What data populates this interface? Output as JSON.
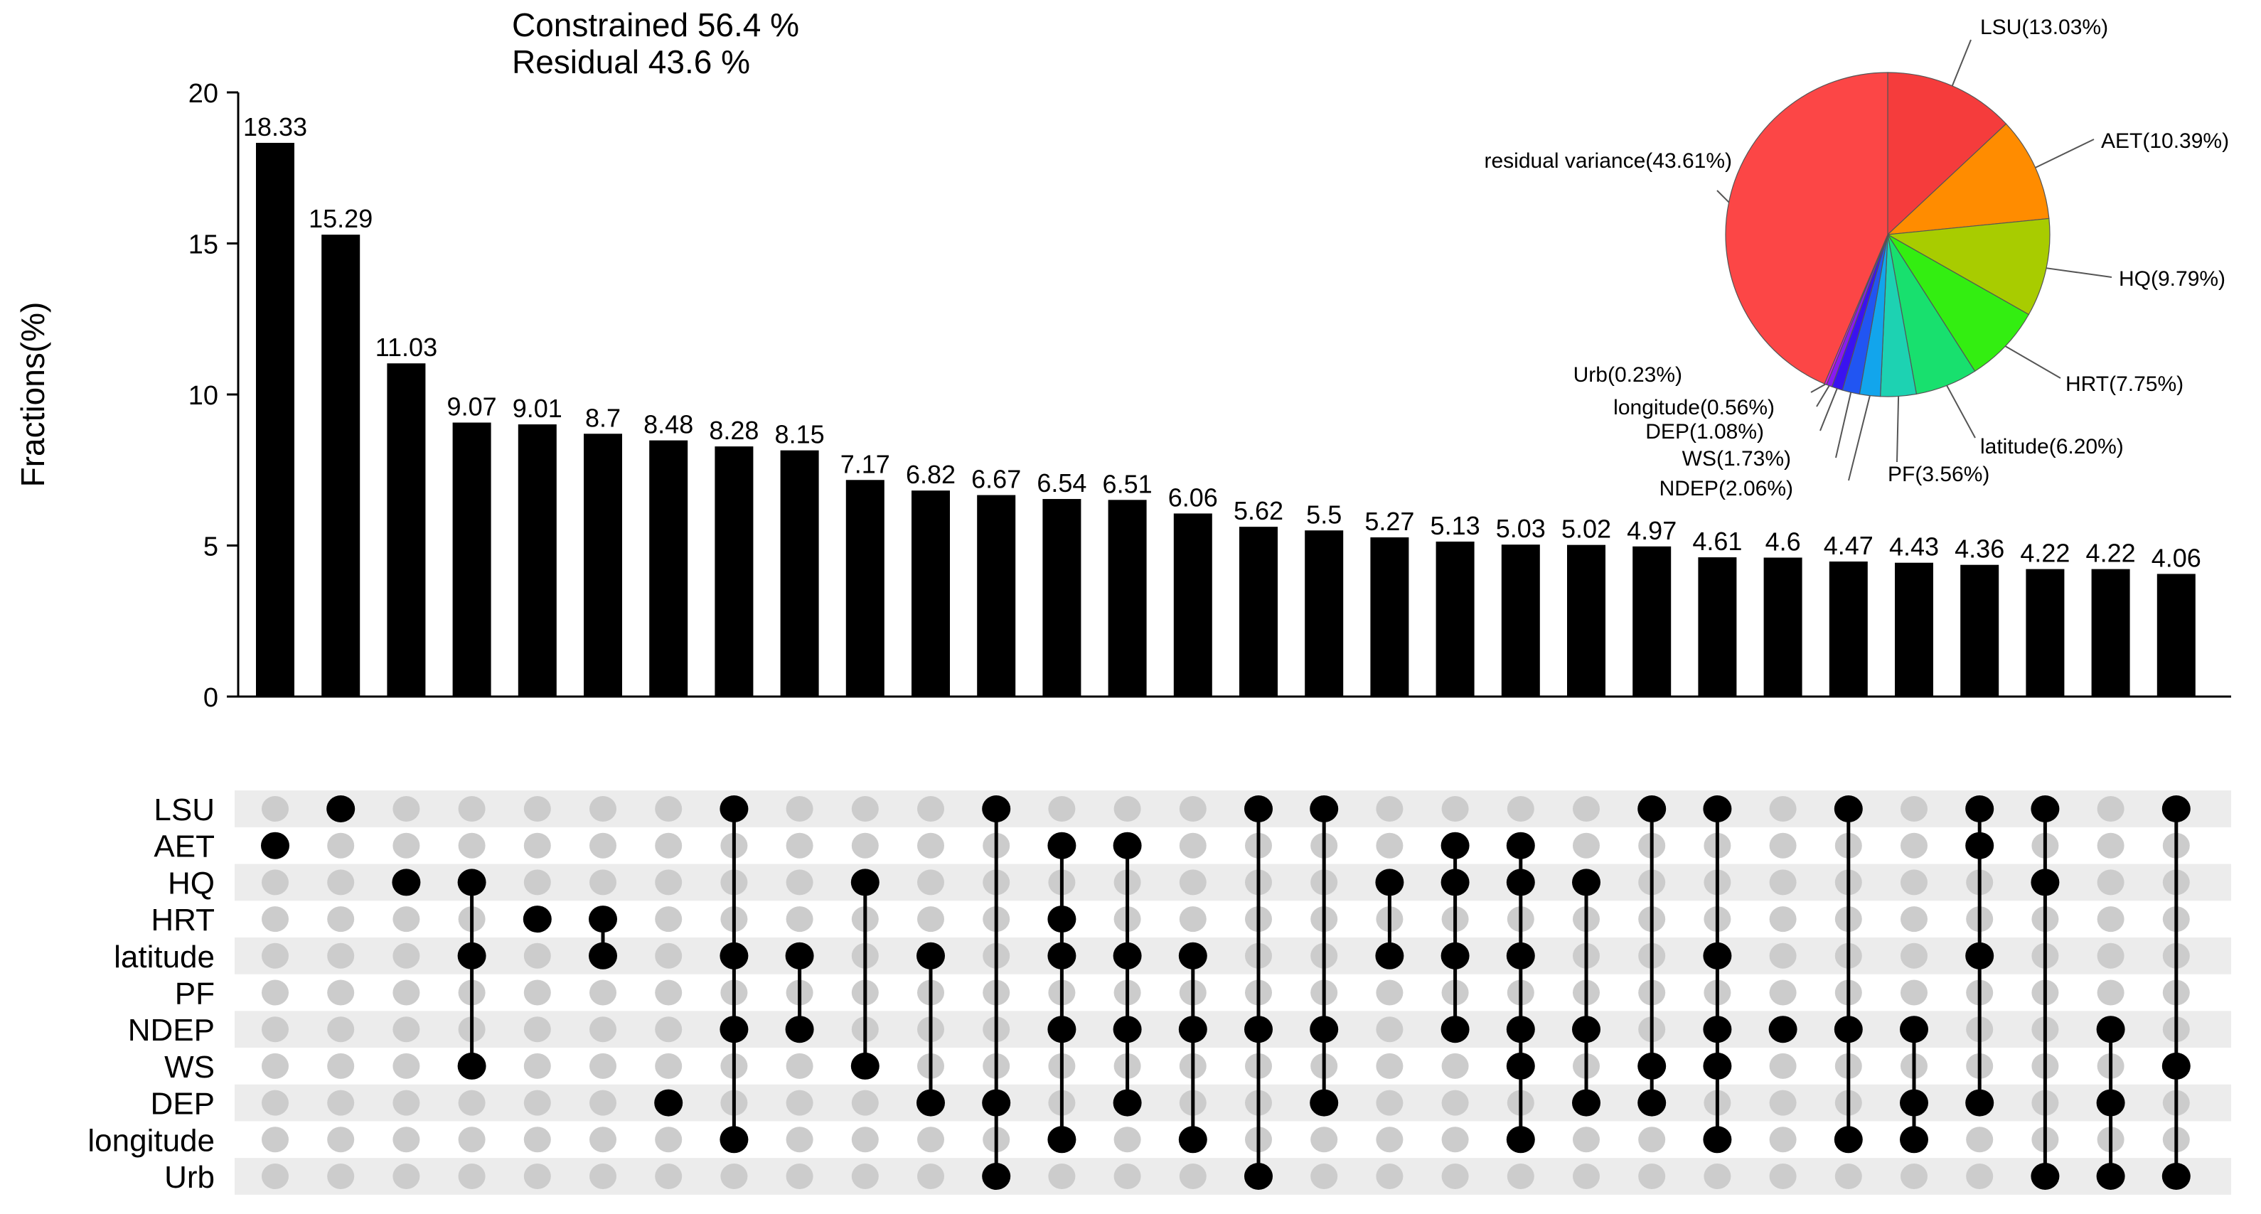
{
  "summary": {
    "constrained": "Constrained 56.4 %",
    "residual": "Residual 43.6 %"
  },
  "chart_data": [
    {
      "type": "bar",
      "title": "",
      "xlabel": "",
      "ylabel": "Fractions(%)",
      "ylim": [
        0,
        20
      ],
      "yticks": [
        "0",
        "5",
        "10",
        "15",
        "20"
      ],
      "values": [
        18.33,
        15.29,
        11.03,
        9.07,
        9.01,
        8.7,
        8.48,
        8.28,
        8.15,
        7.17,
        6.82,
        6.67,
        6.54,
        6.51,
        6.06,
        5.62,
        5.5,
        5.27,
        5.13,
        5.03,
        5.02,
        4.97,
        4.61,
        4.6,
        4.47,
        4.43,
        4.36,
        4.22,
        4.22,
        4.06
      ],
      "value_labels": [
        "18.33",
        "15.29",
        "11.03",
        "9.07",
        "9.01",
        "8.7",
        "8.48",
        "8.28",
        "8.15",
        "7.17",
        "6.82",
        "6.67",
        "6.54",
        "6.51",
        "6.06",
        "5.62",
        "5.5",
        "5.27",
        "5.13",
        "5.03",
        "5.02",
        "4.97",
        "4.61",
        "4.6",
        "4.47",
        "4.43",
        "4.36",
        "4.22",
        "4.22",
        "4.06"
      ],
      "bar_color": "#000000"
    },
    {
      "type": "upset-matrix",
      "sets": [
        "LSU",
        "AET",
        "HQ",
        "HRT",
        "latitude",
        "PF",
        "NDEP",
        "WS",
        "DEP",
        "longitude",
        "Urb"
      ],
      "intersections": [
        [
          "AET"
        ],
        [
          "LSU"
        ],
        [
          "HQ"
        ],
        [
          "HQ",
          "latitude",
          "WS"
        ],
        [
          "HRT"
        ],
        [
          "HRT",
          "latitude"
        ],
        [
          "DEP"
        ],
        [
          "LSU",
          "latitude",
          "NDEP",
          "longitude"
        ],
        [
          "latitude",
          "NDEP"
        ],
        [
          "HQ",
          "WS"
        ],
        [
          "latitude",
          "DEP"
        ],
        [
          "LSU",
          "DEP",
          "Urb"
        ],
        [
          "AET",
          "HRT",
          "latitude",
          "NDEP",
          "longitude"
        ],
        [
          "AET",
          "latitude",
          "NDEP",
          "DEP"
        ],
        [
          "latitude",
          "NDEP",
          "longitude"
        ],
        [
          "LSU",
          "NDEP",
          "Urb"
        ],
        [
          "LSU",
          "NDEP",
          "DEP"
        ],
        [
          "HQ",
          "latitude"
        ],
        [
          "AET",
          "HQ",
          "latitude",
          "NDEP"
        ],
        [
          "AET",
          "HQ",
          "latitude",
          "NDEP",
          "WS",
          "longitude"
        ],
        [
          "HQ",
          "NDEP",
          "DEP"
        ],
        [
          "LSU",
          "WS",
          "DEP"
        ],
        [
          "LSU",
          "latitude",
          "NDEP",
          "WS",
          "longitude"
        ],
        [
          "NDEP"
        ],
        [
          "LSU",
          "NDEP",
          "longitude"
        ],
        [
          "NDEP",
          "DEP",
          "longitude"
        ],
        [
          "LSU",
          "AET",
          "latitude",
          "DEP"
        ],
        [
          "LSU",
          "HQ",
          "Urb"
        ],
        [
          "NDEP",
          "DEP",
          "Urb"
        ],
        [
          "LSU",
          "WS",
          "Urb"
        ]
      ],
      "active_color": "#000000",
      "inactive_color": "#cccccc"
    },
    {
      "type": "pie",
      "start": "12 o'clock, clockwise",
      "slices": [
        {
          "name": "LSU",
          "value": 13.03,
          "label": "LSU(13.03%)",
          "color": "#f53c3c"
        },
        {
          "name": "AET",
          "value": 10.39,
          "label": "AET(10.39%)",
          "color": "#ff8c00"
        },
        {
          "name": "HQ",
          "value": 9.79,
          "label": "HQ(9.79%)",
          "color": "#a8cc00"
        },
        {
          "name": "HRT",
          "value": 7.75,
          "label": "HRT(7.75%)",
          "color": "#33ee11"
        },
        {
          "name": "latitude",
          "value": 6.2,
          "label": "latitude(6.20%)",
          "color": "#18e06e"
        },
        {
          "name": "PF",
          "value": 3.56,
          "label": "PF(3.56%)",
          "color": "#1dd2b2"
        },
        {
          "name": "NDEP",
          "value": 2.06,
          "label": "NDEP(2.06%)",
          "color": "#12a5ec"
        },
        {
          "name": "WS",
          "value": 1.73,
          "label": "WS(1.73%)",
          "color": "#2155f2"
        },
        {
          "name": "DEP",
          "value": 1.08,
          "label": "DEP(1.08%)",
          "color": "#3a12f0"
        },
        {
          "name": "longitude",
          "value": 0.56,
          "label": "longitude(0.56%)",
          "color": "#8a1af0"
        },
        {
          "name": "Urb",
          "value": 0.23,
          "label": "Urb(0.23%)",
          "color": "#dd12e8"
        },
        {
          "name": "residual variance",
          "value": 43.61,
          "label": "residual variance(43.61%)",
          "color": "#fc4646"
        }
      ]
    }
  ]
}
